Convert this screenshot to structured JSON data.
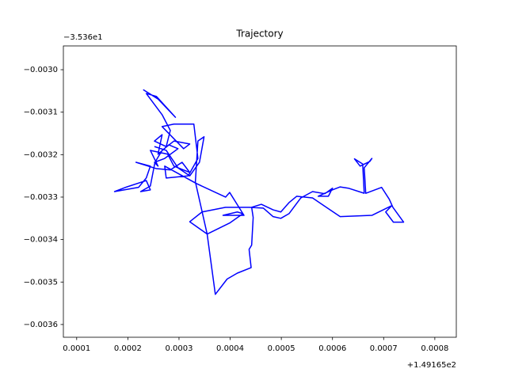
{
  "chart_data": {
    "type": "line",
    "title": "Trajectory",
    "x_offset_label": "+1.49165e2",
    "y_offset_label": "−3.536e1",
    "x": [
      0.00023,
      0.000259,
      0.000293,
      0.000256,
      0.000236,
      0.000267,
      0.000283,
      0.000275,
      0.000252,
      0.000267,
      0.000259,
      0.00028,
      0.000298,
      0.000272,
      0.000252,
      0.000259,
      0.000244,
      0.000278,
      0.00029,
      0.000321,
      0.000306,
      0.000283,
      0.000256,
      0.000216,
      0.000244,
      0.000236,
      0.000221,
      0.000174,
      0.000198,
      0.000236,
      0.000244,
      0.000225,
      0.000244,
      0.000253,
      0.000267,
      0.00029,
      0.000321,
      0.000309,
      0.000267,
      0.00029,
      0.000329,
      0.000337,
      0.000318,
      0.000275,
      0.000272,
      0.000334,
      0.000391,
      0.000399,
      0.000427,
      0.000386,
      0.000414,
      0.000425,
      0.000399,
      0.000355,
      0.000321,
      0.000345,
      0.000391,
      0.000437,
      0.000465,
      0.000484,
      0.000499,
      0.000515,
      0.000538,
      0.000561,
      0.000585,
      0.0006,
      0.000592,
      0.000572,
      0.0006,
      0.000615,
      0.000631,
      0.000662,
      0.000659,
      0.000643,
      0.000654,
      0.000673,
      0.000677,
      0.000662,
      0.000665,
      0.000696,
      0.000711,
      0.000718,
      0.000739,
      0.000719,
      0.000704,
      0.000716,
      0.000677,
      0.000615,
      0.000588,
      0.000561,
      0.00053,
      0.000515,
      0.000499,
      0.000484,
      0.000461,
      0.000442,
      0.000445,
      0.000442,
      0.000437,
      0.000441,
      0.000414,
      0.000394,
      0.000371,
      0.000355,
      0.000332,
      0.000337,
      0.000349,
      0.00034,
      0.000321,
      0.000298,
      0.000275,
      0.000252
    ],
    "series": [
      {
        "color": "#0000ff",
        "values": [
          -0.003047,
          -0.003069,
          -0.003112,
          -0.003063,
          -0.003056,
          -0.003106,
          -0.003143,
          -0.003181,
          -0.003168,
          -0.003153,
          -0.003199,
          -0.003177,
          -0.003186,
          -0.003209,
          -0.003218,
          -0.003227,
          -0.00319,
          -0.003199,
          -0.003227,
          -0.003242,
          -0.003218,
          -0.003236,
          -0.003233,
          -0.003218,
          -0.003227,
          -0.003255,
          -0.003277,
          -0.003287,
          -0.003276,
          -0.003261,
          -0.003283,
          -0.003287,
          -0.003274,
          -0.003218,
          -0.00319,
          -0.003168,
          -0.003175,
          -0.003186,
          -0.003134,
          -0.003128,
          -0.003128,
          -0.003209,
          -0.00325,
          -0.003255,
          -0.003227,
          -0.003268,
          -0.0033,
          -0.003289,
          -0.003343,
          -0.003343,
          -0.003335,
          -0.003339,
          -0.003361,
          -0.003387,
          -0.003358,
          -0.003335,
          -0.003324,
          -0.003324,
          -0.003326,
          -0.003346,
          -0.00335,
          -0.003339,
          -0.003302,
          -0.003287,
          -0.003292,
          -0.003279,
          -0.003298,
          -0.003298,
          -0.003283,
          -0.003276,
          -0.003279,
          -0.003291,
          -0.003222,
          -0.00321,
          -0.003227,
          -0.003216,
          -0.003209,
          -0.003231,
          -0.003291,
          -0.003277,
          -0.003305,
          -0.003324,
          -0.003359,
          -0.003359,
          -0.003335,
          -0.00332,
          -0.003343,
          -0.003346,
          -0.003324,
          -0.003302,
          -0.003298,
          -0.003313,
          -0.003335,
          -0.00333,
          -0.003317,
          -0.003324,
          -0.003348,
          -0.003413,
          -0.003423,
          -0.003466,
          -0.003479,
          -0.003493,
          -0.003529,
          -0.003387,
          -0.003264,
          -0.003168,
          -0.003158,
          -0.003218,
          -0.00325,
          -0.003231,
          -0.00319,
          -0.003181
        ]
      }
    ],
    "xlim": [
      7.4e-05,
      0.000842
    ],
    "ylim": [
      -0.00363,
      -0.002944
    ],
    "xticks": [
      0.0001,
      0.0002,
      0.0003,
      0.0004,
      0.0005,
      0.0006,
      0.0007,
      0.0008
    ],
    "yticks": [
      {
        "value": -0.003,
        "label": "−0.0030"
      },
      {
        "value": -0.0031,
        "label": "−0.0031"
      },
      {
        "value": -0.0032,
        "label": "−0.0032"
      },
      {
        "value": -0.0033,
        "label": "−0.0033"
      },
      {
        "value": -0.0034,
        "label": "−0.0034"
      },
      {
        "value": -0.0035,
        "label": "−0.0035"
      },
      {
        "value": -0.0036,
        "label": "−0.0036"
      }
    ],
    "grid": false
  }
}
